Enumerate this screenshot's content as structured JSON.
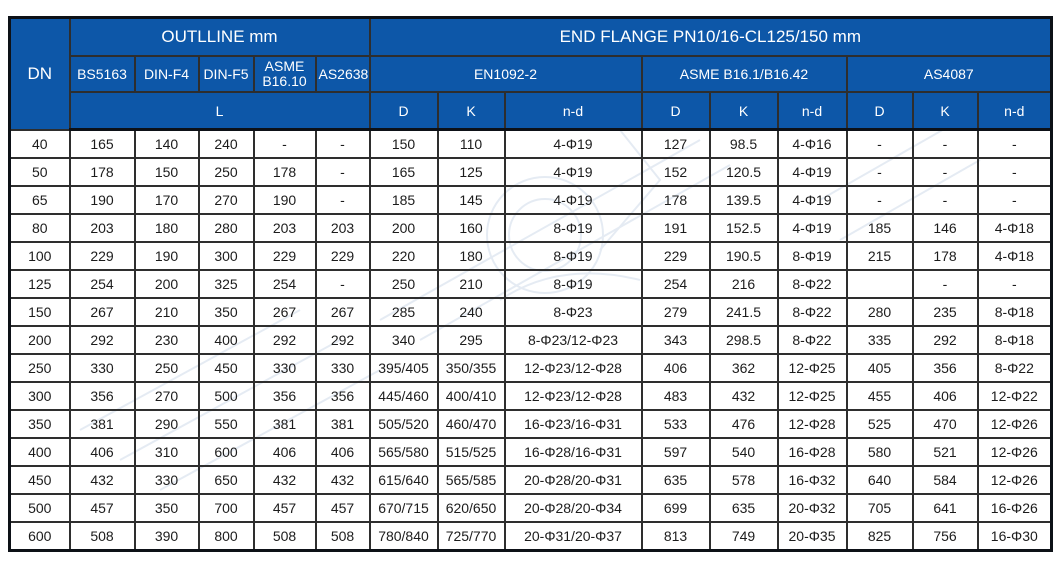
{
  "colors": {
    "header_bg": "#0d57a8",
    "header_text": "#ffffff",
    "outer_border": "#0d1117",
    "grid_line": "#2e2e2e",
    "header_grid": "#0c2a52",
    "cell_text": "#1c1c1c",
    "watermark": "#ccd9e8"
  },
  "table": {
    "dn_label": "DN",
    "outline": {
      "header": "OUTLLINE mm",
      "columns": [
        "BS5163",
        "DIN-F4",
        "DIN-F5",
        "ASME B16.10",
        "AS2638"
      ],
      "sub_label": "L"
    },
    "end_flange": {
      "header": "END FLANGE PN10/16-CL125/150 mm",
      "groups": [
        {
          "label": "EN1092-2",
          "columns": [
            "D",
            "K",
            "n-d"
          ]
        },
        {
          "label": "ASME B16.1/B16.42",
          "columns": [
            "D",
            "K",
            "n-d"
          ]
        },
        {
          "label": "AS4087",
          "columns": [
            "D",
            "K",
            "n-d"
          ]
        }
      ]
    },
    "rows": [
      {
        "dn": "40",
        "outline": [
          "165",
          "140",
          "240",
          "-",
          "-"
        ],
        "en": [
          "150",
          "110",
          "4-Φ19"
        ],
        "asme": [
          "127",
          "98.5",
          "4-Φ16"
        ],
        "as4087": [
          "-",
          "-",
          "-"
        ]
      },
      {
        "dn": "50",
        "outline": [
          "178",
          "150",
          "250",
          "178",
          "-"
        ],
        "en": [
          "165",
          "125",
          "4-Φ19"
        ],
        "asme": [
          "152",
          "120.5",
          "4-Φ19"
        ],
        "as4087": [
          "-",
          "-",
          "-"
        ]
      },
      {
        "dn": "65",
        "outline": [
          "190",
          "170",
          "270",
          "190",
          "-"
        ],
        "en": [
          "185",
          "145",
          "4-Φ19"
        ],
        "asme": [
          "178",
          "139.5",
          "4-Φ19"
        ],
        "as4087": [
          "-",
          "-",
          "-"
        ]
      },
      {
        "dn": "80",
        "outline": [
          "203",
          "180",
          "280",
          "203",
          "203"
        ],
        "en": [
          "200",
          "160",
          "8-Φ19"
        ],
        "asme": [
          "191",
          "152.5",
          "4-Φ19"
        ],
        "as4087": [
          "185",
          "146",
          "4-Φ18"
        ]
      },
      {
        "dn": "100",
        "outline": [
          "229",
          "190",
          "300",
          "229",
          "229"
        ],
        "en": [
          "220",
          "180",
          "8-Φ19"
        ],
        "asme": [
          "229",
          "190.5",
          "8-Φ19"
        ],
        "as4087": [
          "215",
          "178",
          "4-Φ18"
        ]
      },
      {
        "dn": "125",
        "outline": [
          "254",
          "200",
          "325",
          "254",
          "-"
        ],
        "en": [
          "250",
          "210",
          "8-Φ19"
        ],
        "asme": [
          "254",
          "216",
          "8-Φ22"
        ],
        "as4087": [
          "",
          "-",
          "-"
        ]
      },
      {
        "dn": "150",
        "outline": [
          "267",
          "210",
          "350",
          "267",
          "267"
        ],
        "en": [
          "285",
          "240",
          "8-Φ23"
        ],
        "asme": [
          "279",
          "241.5",
          "8-Φ22"
        ],
        "as4087": [
          "280",
          "235",
          "8-Φ18"
        ]
      },
      {
        "dn": "200",
        "outline": [
          "292",
          "230",
          "400",
          "292",
          "292"
        ],
        "en": [
          "340",
          "295",
          "8-Φ23/12-Φ23"
        ],
        "asme": [
          "343",
          "298.5",
          "8-Φ22"
        ],
        "as4087": [
          "335",
          "292",
          "8-Φ18"
        ]
      },
      {
        "dn": "250",
        "outline": [
          "330",
          "250",
          "450",
          "330",
          "330"
        ],
        "en": [
          "395/405",
          "350/355",
          "12-Φ23/12-Φ28"
        ],
        "asme": [
          "406",
          "362",
          "12-Φ25"
        ],
        "as4087": [
          "405",
          "356",
          "8-Φ22"
        ]
      },
      {
        "dn": "300",
        "outline": [
          "356",
          "270",
          "500",
          "356",
          "356"
        ],
        "en": [
          "445/460",
          "400/410",
          "12-Φ23/12-Φ28"
        ],
        "asme": [
          "483",
          "432",
          "12-Φ25"
        ],
        "as4087": [
          "455",
          "406",
          "12-Φ22"
        ]
      },
      {
        "dn": "350",
        "outline": [
          "381",
          "290",
          "550",
          "381",
          "381"
        ],
        "en": [
          "505/520",
          "460/470",
          "16-Φ23/16-Φ31"
        ],
        "asme": [
          "533",
          "476",
          "12-Φ28"
        ],
        "as4087": [
          "525",
          "470",
          "12-Φ26"
        ]
      },
      {
        "dn": "400",
        "outline": [
          "406",
          "310",
          "600",
          "406",
          "406"
        ],
        "en": [
          "565/580",
          "515/525",
          "16-Φ28/16-Φ31"
        ],
        "asme": [
          "597",
          "540",
          "16-Φ28"
        ],
        "as4087": [
          "580",
          "521",
          "12-Φ26"
        ]
      },
      {
        "dn": "450",
        "outline": [
          "432",
          "330",
          "650",
          "432",
          "432"
        ],
        "en": [
          "615/640",
          "565/585",
          "20-Φ28/20-Φ31"
        ],
        "asme": [
          "635",
          "578",
          "16-Φ32"
        ],
        "as4087": [
          "640",
          "584",
          "12-Φ26"
        ]
      },
      {
        "dn": "500",
        "outline": [
          "457",
          "350",
          "700",
          "457",
          "457"
        ],
        "en": [
          "670/715",
          "620/650",
          "20-Φ28/20-Φ34"
        ],
        "asme": [
          "699",
          "635",
          "20-Φ32"
        ],
        "as4087": [
          "705",
          "641",
          "16-Φ26"
        ]
      },
      {
        "dn": "600",
        "outline": [
          "508",
          "390",
          "800",
          "508",
          "508"
        ],
        "en": [
          "780/840",
          "725/770",
          "20-Φ31/20-Φ37"
        ],
        "asme": [
          "813",
          "749",
          "20-Φ35"
        ],
        "as4087": [
          "825",
          "756",
          "16-Φ30"
        ]
      }
    ]
  }
}
